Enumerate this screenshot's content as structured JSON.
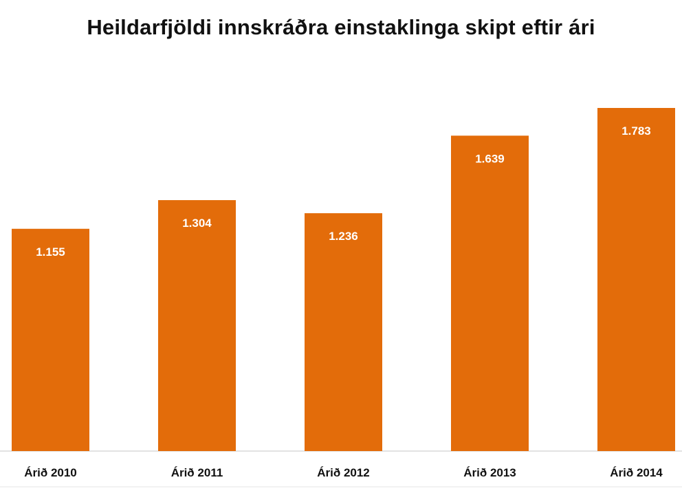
{
  "chart_data": {
    "type": "bar",
    "title": "Heildarfjöldi innskráðra einstaklinga skipt eftir ári",
    "categories": [
      "Árið 2010",
      "Árið 2011",
      "Árið 2012",
      "Árið 2013",
      "Árið 2014"
    ],
    "values": [
      1155,
      1304,
      1236,
      1639,
      1783
    ],
    "data_labels": [
      "1.155",
      "1.304",
      "1.236",
      "1.639",
      "1.783"
    ],
    "xlabel": "",
    "ylabel": "",
    "ylim": [
      0,
      1783
    ],
    "grid": false,
    "legend": "none",
    "colors": {
      "bar": "#E36C0A",
      "axis": "#D9D9D9"
    }
  }
}
